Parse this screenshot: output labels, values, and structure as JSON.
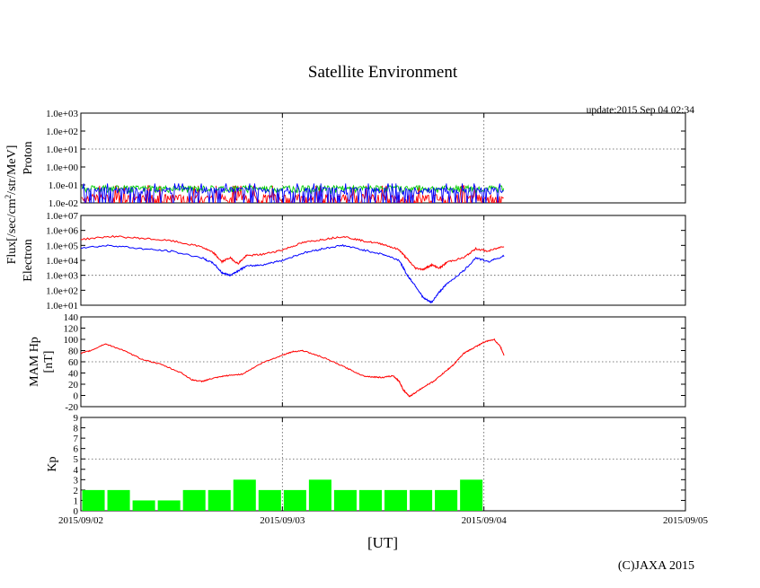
{
  "title": "Satellite Environment",
  "update": "update:2015 Sep 04 02:34",
  "copyright": "(C)JAXA 2015",
  "flux_unit": {
    "pre": "Flux[/sec/cm",
    "sup": "2",
    "post": "/str/MeV]"
  },
  "chart_data": [
    {
      "type": "line",
      "name": "proton",
      "ylabel": "Proton",
      "yscale": "log",
      "ylim": [
        0.01,
        1000
      ],
      "yticks": [
        "1.0e-02",
        "1.0e-01",
        "1.0e+00",
        "1.0e+01",
        "1.0e+02",
        "1.0e+03"
      ],
      "grid_y": [
        "1.0e+01"
      ],
      "series": [
        {
          "name": "red",
          "color": "#ff0000",
          "base": 0.02,
          "high": 0.09,
          "spikes": true
        },
        {
          "name": "green",
          "color": "#00cc00",
          "base": 0.06,
          "high": 0.09,
          "spikes": false
        },
        {
          "name": "blue",
          "color": "#0000ff",
          "base": 0.05,
          "high": 0.12,
          "spikes": true
        }
      ],
      "x_end": 2.1
    },
    {
      "type": "line",
      "name": "electron",
      "ylabel": "Electron",
      "yscale": "log",
      "ylim": [
        10,
        10000000
      ],
      "yticks": [
        "1.0e+01",
        "1.0e+02",
        "1.0e+03",
        "1.0e+04",
        "1.0e+05",
        "1.0e+06",
        "1.0e+07"
      ],
      "grid_y": [
        "1.0e+03"
      ],
      "series": [
        {
          "name": "red",
          "color": "#ff0000",
          "x": [
            0,
            0.15,
            0.3,
            0.45,
            0.6,
            0.66,
            0.7,
            0.74,
            0.78,
            0.82,
            0.9,
            1.0,
            1.1,
            1.2,
            1.3,
            1.4,
            1.5,
            1.58,
            1.62,
            1.66,
            1.7,
            1.74,
            1.78,
            1.82,
            1.9,
            1.96,
            2.02,
            2.1
          ],
          "y": [
            250000,
            400000,
            300000,
            200000,
            80000,
            30000,
            8000,
            15000,
            6000,
            20000,
            25000,
            50000,
            150000,
            250000,
            400000,
            200000,
            120000,
            50000,
            12000,
            3000,
            2500,
            5000,
            3000,
            8000,
            15000,
            60000,
            40000,
            90000
          ]
        },
        {
          "name": "blue",
          "color": "#0000ff",
          "x": [
            0,
            0.15,
            0.3,
            0.45,
            0.6,
            0.66,
            0.7,
            0.74,
            0.78,
            0.82,
            0.9,
            1.0,
            1.1,
            1.2,
            1.3,
            1.4,
            1.5,
            1.58,
            1.62,
            1.66,
            1.7,
            1.74,
            1.78,
            1.82,
            1.9,
            1.96,
            2.02,
            2.1
          ],
          "y": [
            70000,
            100000,
            60000,
            40000,
            15000,
            6000,
            1500,
            1000,
            2000,
            4000,
            5000,
            10000,
            30000,
            60000,
            100000,
            50000,
            25000,
            10000,
            1000,
            200,
            30,
            15,
            80,
            300,
            2000,
            15000,
            8000,
            20000
          ]
        }
      ],
      "x_end": 2.1
    },
    {
      "type": "line",
      "name": "hp",
      "ylabel": "MAM Hp",
      "ylabel2": "[nT]",
      "ylim": [
        -20,
        140
      ],
      "yticks": [
        "-20",
        "0",
        "20",
        "40",
        "60",
        "80",
        "100",
        "120",
        "140"
      ],
      "grid_y": [
        "60"
      ],
      "series": [
        {
          "name": "hp",
          "color": "#ff0000",
          "x": [
            0,
            0.05,
            0.12,
            0.2,
            0.3,
            0.4,
            0.5,
            0.55,
            0.6,
            0.65,
            0.72,
            0.8,
            0.9,
            1.0,
            1.05,
            1.1,
            1.2,
            1.3,
            1.4,
            1.45,
            1.5,
            1.55,
            1.58,
            1.6,
            1.63,
            1.66,
            1.7,
            1.75,
            1.8,
            1.85,
            1.9,
            1.95,
            2.0,
            2.05,
            2.08,
            2.1
          ],
          "y": [
            75,
            80,
            92,
            82,
            65,
            55,
            40,
            28,
            25,
            30,
            35,
            38,
            58,
            72,
            78,
            80,
            68,
            52,
            35,
            33,
            32,
            35,
            25,
            10,
            -2,
            5,
            15,
            25,
            40,
            55,
            75,
            85,
            95,
            100,
            88,
            72
          ]
        }
      ],
      "x_end": 2.1
    },
    {
      "type": "bar",
      "name": "kp",
      "ylabel": "Kp",
      "ylim": [
        0,
        9
      ],
      "yticks": [
        "0",
        "1",
        "2",
        "3",
        "4",
        "5",
        "6",
        "7",
        "8",
        "9"
      ],
      "grid_y": [
        "5"
      ],
      "color": "#00ff00",
      "values": [
        2,
        2,
        1,
        1,
        2,
        2,
        3,
        2,
        2,
        3,
        2,
        2,
        2,
        2,
        2,
        3
      ]
    }
  ],
  "xaxis": {
    "label": "[UT]",
    "ticks": [
      "2015/09/02",
      "2015/09/03",
      "2015/09/04",
      "2015/09/05"
    ]
  }
}
